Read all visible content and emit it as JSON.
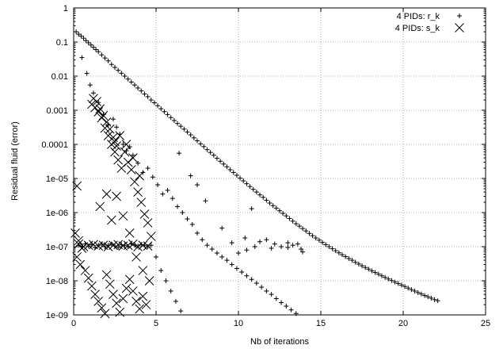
{
  "chart_data": {
    "type": "scatter",
    "title": "",
    "xlabel": "Nb of iterations",
    "ylabel": "Residual fluid (error)",
    "xlim": [
      0,
      25
    ],
    "ylim": [
      1e-09,
      1
    ],
    "yscale": "log",
    "grid": true,
    "legend_position": "top-right",
    "x_ticks": [
      "0",
      "5",
      "10",
      "15",
      "20",
      "25"
    ],
    "y_ticks": [
      "1e-09",
      "1e-08",
      "1e-07",
      "1e-06",
      "1e-05",
      "0.0001",
      "0.001",
      "0.01",
      "0.1",
      "1"
    ],
    "series": [
      {
        "name": "4 PIDs: r_k",
        "marker": "plus",
        "points": [
          [
            0.15,
            0.2
          ],
          [
            0.3,
            0.17
          ],
          [
            0.45,
            0.15
          ],
          [
            0.6,
            0.13
          ],
          [
            0.75,
            0.11
          ],
          [
            0.9,
            0.095
          ],
          [
            1.05,
            0.082
          ],
          [
            1.2,
            0.07
          ],
          [
            1.35,
            0.06
          ],
          [
            1.5,
            0.052
          ],
          [
            1.7,
            0.042
          ],
          [
            1.9,
            0.034
          ],
          [
            2.1,
            0.028
          ],
          [
            2.3,
            0.022
          ],
          [
            2.5,
            0.018
          ],
          [
            2.7,
            0.0148
          ],
          [
            2.9,
            0.0122
          ],
          [
            3.1,
            0.01
          ],
          [
            3.3,
            0.0082
          ],
          [
            3.5,
            0.0067
          ],
          [
            3.7,
            0.0055
          ],
          [
            3.9,
            0.0045
          ],
          [
            4.1,
            0.0037
          ],
          [
            4.3,
            0.003
          ],
          [
            4.5,
            0.0025
          ],
          [
            4.7,
            0.002
          ],
          [
            4.9,
            0.00166
          ],
          [
            5.1,
            0.00136
          ],
          [
            5.3,
            0.00111
          ],
          [
            5.5,
            0.00091
          ],
          [
            5.7,
            0.00075
          ],
          [
            5.9,
            0.00061
          ],
          [
            6.1,
            0.0005
          ],
          [
            6.3,
            0.00041
          ],
          [
            6.5,
            0.00034
          ],
          [
            6.7,
            0.00028
          ],
          [
            6.9,
            0.00023
          ],
          [
            7.1,
            0.00019
          ],
          [
            7.3,
            0.000155
          ],
          [
            7.5,
            0.000127
          ],
          [
            7.7,
            0.000104
          ],
          [
            7.9,
            8.6e-05
          ],
          [
            8.1,
            7e-05
          ],
          [
            8.3,
            5.8e-05
          ],
          [
            8.5,
            4.8e-05
          ],
          [
            8.7,
            3.9e-05
          ],
          [
            8.9,
            3.2e-05
          ],
          [
            9.1,
            2.65e-05
          ],
          [
            9.3,
            2.2e-05
          ],
          [
            9.5,
            1.8e-05
          ],
          [
            9.7,
            1.5e-05
          ],
          [
            9.9,
            1.24e-05
          ],
          [
            10.1,
            1.02e-05
          ],
          [
            10.3,
            8.5e-06
          ],
          [
            10.5,
            7e-06
          ],
          [
            10.7,
            5.8e-06
          ],
          [
            10.9,
            4.8e-06
          ],
          [
            11.1,
            4e-06
          ],
          [
            11.3,
            3.3e-06
          ],
          [
            11.5,
            2.8e-06
          ],
          [
            11.7,
            2.3e-06
          ],
          [
            11.9,
            1.9e-06
          ],
          [
            12.1,
            1.6e-06
          ],
          [
            12.3,
            1.35e-06
          ],
          [
            12.5,
            1.13e-06
          ],
          [
            12.7,
            9.5e-07
          ],
          [
            12.9,
            8e-07
          ],
          [
            13.1,
            6.7e-07
          ],
          [
            13.3,
            5.6e-07
          ],
          [
            13.5,
            4.7e-07
          ],
          [
            13.7,
            4e-07
          ],
          [
            13.9,
            3.4e-07
          ],
          [
            14.1,
            2.9e-07
          ],
          [
            14.3,
            2.45e-07
          ],
          [
            14.5,
            2.1e-07
          ],
          [
            14.7,
            1.8e-07
          ],
          [
            14.9,
            1.55e-07
          ],
          [
            15.1,
            1.33e-07
          ],
          [
            15.3,
            1.15e-07
          ],
          [
            15.5,
            1e-07
          ],
          [
            15.7,
            8.7e-08
          ],
          [
            15.9,
            7.6e-08
          ],
          [
            16.1,
            6.6e-08
          ],
          [
            16.3,
            5.8e-08
          ],
          [
            16.5,
            5.1e-08
          ],
          [
            16.7,
            4.5e-08
          ],
          [
            16.9,
            4e-08
          ],
          [
            17.1,
            3.5e-08
          ],
          [
            17.3,
            3.1e-08
          ],
          [
            17.5,
            2.75e-08
          ],
          [
            17.7,
            2.45e-08
          ],
          [
            17.9,
            2.2e-08
          ],
          [
            18.1,
            1.95e-08
          ],
          [
            18.3,
            1.75e-08
          ],
          [
            18.5,
            1.57e-08
          ],
          [
            18.7,
            1.4e-08
          ],
          [
            18.9,
            1.26e-08
          ],
          [
            19.1,
            1.13e-08
          ],
          [
            19.3,
            1.02e-08
          ],
          [
            19.5,
            9.2e-09
          ],
          [
            19.7,
            8.3e-09
          ],
          [
            19.9,
            7.5e-09
          ],
          [
            20.1,
            6.8e-09
          ],
          [
            20.3,
            6.1e-09
          ],
          [
            20.5,
            5.5e-09
          ],
          [
            20.7,
            5e-09
          ],
          [
            20.9,
            4.5e-09
          ],
          [
            21.1,
            4.1e-09
          ],
          [
            21.3,
            3.7e-09
          ],
          [
            21.5,
            3.4e-09
          ],
          [
            21.7,
            3.1e-09
          ],
          [
            21.9,
            2.8e-09
          ],
          [
            22.1,
            2.6e-09
          ],
          [
            0.5,
            0.035
          ],
          [
            0.8,
            0.012
          ],
          [
            1.0,
            0.0055
          ],
          [
            1.2,
            0.0032
          ],
          [
            1.5,
            0.0017
          ],
          [
            1.8,
            0.00075
          ],
          [
            2.1,
            0.00038
          ],
          [
            2.4,
            0.00055
          ],
          [
            2.6,
            0.00032
          ],
          [
            2.8,
            0.0002
          ],
          [
            3.0,
            0.0001
          ],
          [
            3.2,
            6.5e-05
          ],
          [
            3.4,
            8.5e-05
          ],
          [
            3.6,
            4.8e-05
          ],
          [
            3.9,
            2.8e-05
          ],
          [
            4.2,
            1.5e-05
          ],
          [
            4.5,
            2e-05
          ],
          [
            4.8,
            1.1e-05
          ],
          [
            5.1,
            6.5e-06
          ],
          [
            5.4,
            3.5e-06
          ],
          [
            5.7,
            4.5e-06
          ],
          [
            6.0,
            2.6e-06
          ],
          [
            6.3,
            1.5e-06
          ],
          [
            6.6,
            1e-06
          ],
          [
            6.9,
            6.5e-07
          ],
          [
            7.2,
            4.5e-07
          ],
          [
            7.5,
            2.5e-07
          ],
          [
            7.8,
            1.6e-07
          ],
          [
            8.1,
            1.1e-07
          ],
          [
            8.4,
            8.5e-08
          ],
          [
            8.7,
            6.5e-08
          ],
          [
            9.0,
            5e-08
          ],
          [
            9.3,
            4e-08
          ],
          [
            9.6,
            3e-08
          ],
          [
            9.9,
            2.3e-08
          ],
          [
            10.2,
            1.8e-08
          ],
          [
            10.5,
            1.4e-08
          ],
          [
            10.8,
            1.1e-08
          ],
          [
            11.1,
            8.5e-09
          ],
          [
            11.4,
            6.5e-09
          ],
          [
            11.7,
            5e-09
          ],
          [
            12.0,
            4e-09
          ],
          [
            12.3,
            3e-09
          ],
          [
            12.6,
            2.3e-09
          ],
          [
            12.9,
            1.8e-09
          ],
          [
            13.2,
            1.4e-09
          ],
          [
            13.5,
            1.1e-09
          ],
          [
            0.3,
            1.1e-07
          ],
          [
            0.5,
            1e-07
          ],
          [
            0.7,
            1.2e-07
          ],
          [
            0.9,
            1.05e-07
          ],
          [
            1.1,
            1.15e-07
          ],
          [
            1.3,
            9.5e-08
          ],
          [
            1.5,
            1.1e-07
          ],
          [
            1.7,
            1.2e-07
          ],
          [
            1.9,
            1e-07
          ],
          [
            2.1,
            1.1e-07
          ],
          [
            2.3,
            1.2e-07
          ],
          [
            2.5,
            1.05e-07
          ],
          [
            2.7,
            9.5e-08
          ],
          [
            2.9,
            1.15e-07
          ],
          [
            3.1,
            1.1e-07
          ],
          [
            3.3,
            1e-07
          ],
          [
            3.5,
            1.2e-07
          ],
          [
            3.7,
            1.1e-07
          ],
          [
            3.9,
            1.05e-07
          ],
          [
            4.1,
            1.15e-07
          ],
          [
            4.3,
            1.1e-07
          ],
          [
            4.5,
            1e-07
          ],
          [
            4.7,
            1.1e-07
          ],
          [
            5.0,
            5e-08
          ],
          [
            5.3,
            2e-08
          ],
          [
            5.6,
            1e-08
          ],
          [
            5.9,
            5e-09
          ],
          [
            6.2,
            2.5e-09
          ],
          [
            6.5,
            1.3e-09
          ],
          [
            6.4,
            5.5e-05
          ],
          [
            7.1,
            1.2e-05
          ],
          [
            7.5,
            6.5e-06
          ],
          [
            8.0,
            2.2e-06
          ],
          [
            9.0,
            3.5e-07
          ],
          [
            9.6,
            1.3e-07
          ],
          [
            10.4,
            1.8e-07
          ],
          [
            10.8,
            1.3e-06
          ],
          [
            11.3,
            1.4e-07
          ],
          [
            11.7,
            1.6e-07
          ],
          [
            12.2,
            1.2e-07
          ],
          [
            12.6,
            1e-07
          ],
          [
            13.0,
            9.5e-08
          ],
          [
            13.3,
            1.1e-07
          ],
          [
            13.6,
            1.2e-07
          ],
          [
            13.8,
            8.5e-08
          ],
          [
            10.0,
            6.5e-08
          ],
          [
            10.5,
            8e-08
          ],
          [
            11.0,
            1e-07
          ],
          [
            12.0,
            9e-08
          ],
          [
            13.0,
            1.3e-07
          ],
          [
            13.9,
            7e-08
          ]
        ]
      },
      {
        "name": "4 PIDs: s_k",
        "marker": "x",
        "points": [
          [
            0.2,
            6e-06
          ],
          [
            0.1,
            2.5e-07
          ],
          [
            0.3,
            1.5e-07
          ],
          [
            0.5,
            9e-08
          ],
          [
            0.2,
            5e-08
          ],
          [
            0.4,
            3e-08
          ],
          [
            0.7,
            2e-08
          ],
          [
            0.9,
            1.2e-08
          ],
          [
            1.1,
            7e-09
          ],
          [
            1.3,
            4e-09
          ],
          [
            1.5,
            2.5e-09
          ],
          [
            1.7,
            1.6e-09
          ],
          [
            1.9,
            1.1e-09
          ],
          [
            1.1,
            0.0015
          ],
          [
            1.3,
            0.0012
          ],
          [
            1.5,
            0.0009
          ],
          [
            1.7,
            0.0006
          ],
          [
            1.9,
            0.0003
          ],
          [
            2.1,
            0.00018
          ],
          [
            2.3,
            0.0001
          ],
          [
            2.5,
            6e-05
          ],
          [
            2.7,
            3.5e-05
          ],
          [
            2.9,
            2e-05
          ],
          [
            1.2,
            0.0022
          ],
          [
            1.4,
            0.0018
          ],
          [
            1.6,
            0.0011
          ],
          [
            1.8,
            0.0007
          ],
          [
            2.0,
            0.00045
          ],
          [
            2.2,
            0.00028
          ],
          [
            2.4,
            0.00016
          ],
          [
            2.6,
            9e-05
          ],
          [
            3.1,
            6e-05
          ],
          [
            3.3,
            3e-05
          ],
          [
            3.5,
            1.8e-05
          ],
          [
            3.7,
            8e-06
          ],
          [
            3.9,
            4e-06
          ],
          [
            4.1,
            2e-06
          ],
          [
            4.3,
            9e-07
          ],
          [
            4.5,
            5e-07
          ],
          [
            4.7,
            2e-07
          ],
          [
            2.5,
            0.00012
          ],
          [
            2.8,
            0.00018
          ],
          [
            3.2,
            0.0001
          ],
          [
            3.6,
            4e-05
          ],
          [
            4.0,
            1.2e-05
          ],
          [
            0.3,
            1.2e-07
          ],
          [
            0.6,
            1e-07
          ],
          [
            0.9,
            1.1e-07
          ],
          [
            1.2,
            1.15e-07
          ],
          [
            1.5,
            1.05e-07
          ],
          [
            1.8,
            1.1e-07
          ],
          [
            2.1,
            1e-07
          ],
          [
            2.4,
            1.1e-07
          ],
          [
            2.7,
            1.15e-07
          ],
          [
            3.0,
            1.05e-07
          ],
          [
            3.3,
            1.1e-07
          ],
          [
            3.6,
            1.2e-07
          ],
          [
            3.9,
            1e-07
          ],
          [
            4.2,
            1.1e-07
          ],
          [
            4.5,
            1.05e-07
          ],
          [
            1.6,
            1.5e-06
          ],
          [
            2.0,
            3.5e-06
          ],
          [
            2.3,
            6e-07
          ],
          [
            2.6,
            3e-06
          ],
          [
            3.0,
            8e-07
          ],
          [
            3.4,
            2.5e-07
          ],
          [
            3.8,
            5e-08
          ],
          [
            4.2,
            2e-08
          ],
          [
            4.6,
            1e-08
          ],
          [
            2.0,
            1.5e-08
          ],
          [
            2.2,
            8e-09
          ],
          [
            2.4,
            4e-09
          ],
          [
            2.6,
            2.2e-09
          ],
          [
            2.8,
            1.2e-09
          ],
          [
            3.0,
            3e-09
          ],
          [
            3.2,
            6e-09
          ],
          [
            3.4,
            1.1e-08
          ],
          [
            3.6,
            5e-09
          ],
          [
            3.8,
            2.5e-09
          ],
          [
            4.0,
            1.5e-09
          ],
          [
            4.2,
            3.5e-09
          ],
          [
            4.4,
            2e-09
          ]
        ]
      }
    ]
  }
}
